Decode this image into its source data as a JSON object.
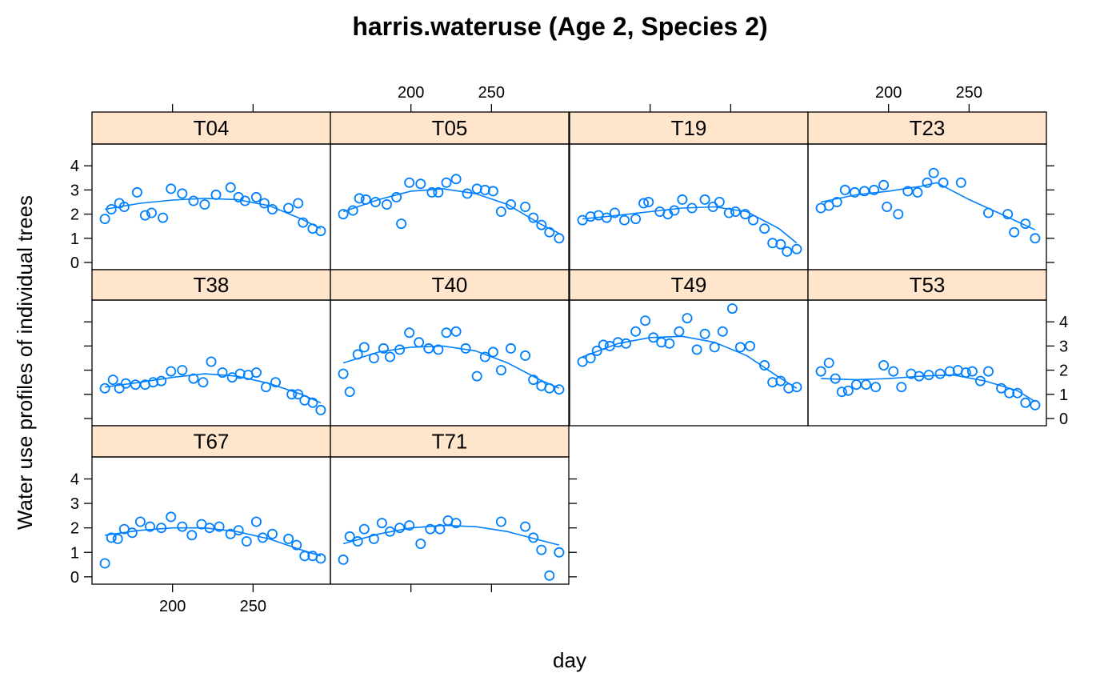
{
  "chart_data": {
    "type": "scatter",
    "title": "harris.wateruse (Age 2, Species 2)",
    "xlabel": "day",
    "ylabel": "Water use profiles of individual trees",
    "xlim": [
      150,
      298
    ],
    "ylim": [
      -0.3,
      4.9
    ],
    "x_ticks": [
      200,
      250
    ],
    "y_ticks": [
      0,
      1,
      2,
      3,
      4
    ],
    "point_color": "#0080ff",
    "strip_color": "#ffe5cc",
    "layout": "4 columns x 3 rows (lattice)",
    "panels": [
      {
        "name": "T04",
        "x": [
          158,
          162,
          167,
          170,
          178,
          183,
          187,
          194,
          199,
          206,
          213,
          220,
          227,
          236,
          241,
          245,
          252,
          257,
          262,
          272,
          278,
          281,
          287,
          292
        ],
        "y": [
          1.8,
          2.2,
          2.45,
          2.3,
          2.9,
          1.95,
          2.05,
          1.85,
          3.05,
          2.85,
          2.55,
          2.4,
          2.8,
          3.1,
          2.7,
          2.55,
          2.7,
          2.45,
          2.2,
          2.25,
          2.45,
          1.65,
          1.4,
          1.3
        ],
        "fit_x": [
          158,
          180,
          200,
          220,
          240,
          260,
          280,
          292
        ],
        "fit_y": [
          2.2,
          2.45,
          2.58,
          2.65,
          2.6,
          2.35,
          1.8,
          1.4
        ]
      },
      {
        "name": "T05",
        "x": [
          158,
          164,
          168,
          172,
          178,
          185,
          191,
          194,
          199,
          206,
          213,
          217,
          222,
          228,
          235,
          241,
          246,
          251,
          256,
          262,
          271,
          276,
          281,
          286,
          292
        ],
        "y": [
          2.0,
          2.15,
          2.65,
          2.6,
          2.5,
          2.4,
          2.7,
          1.6,
          3.3,
          3.25,
          2.9,
          2.9,
          3.3,
          3.45,
          2.85,
          3.05,
          3.0,
          2.95,
          2.1,
          2.4,
          2.3,
          1.85,
          1.55,
          1.25,
          1.0
        ],
        "fit_x": [
          158,
          180,
          200,
          220,
          240,
          260,
          280,
          292
        ],
        "fit_y": [
          2.1,
          2.6,
          2.95,
          3.05,
          2.85,
          2.4,
          1.6,
          1.2
        ]
      },
      {
        "name": "T19",
        "x": [
          158,
          163,
          168,
          173,
          178,
          184,
          191,
          196,
          199,
          206,
          211,
          215,
          220,
          226,
          234,
          239,
          243,
          249,
          253,
          259,
          264,
          271,
          276,
          281,
          285,
          291
        ],
        "y": [
          1.75,
          1.9,
          1.95,
          1.85,
          2.05,
          1.75,
          1.8,
          2.45,
          2.5,
          2.1,
          2.0,
          2.15,
          2.6,
          2.25,
          2.6,
          2.3,
          2.5,
          2.05,
          2.1,
          2.0,
          1.75,
          1.4,
          0.8,
          0.75,
          0.45,
          0.55
        ],
        "fit_x": [
          158,
          180,
          200,
          220,
          240,
          260,
          280,
          291
        ],
        "fit_y": [
          1.8,
          1.95,
          2.1,
          2.25,
          2.3,
          2.1,
          1.4,
          0.8
        ]
      },
      {
        "name": "T23",
        "x": [
          158,
          163,
          168,
          173,
          179,
          185,
          191,
          197,
          199,
          206,
          212,
          218,
          224,
          228,
          234,
          245,
          262,
          274,
          278,
          285,
          291
        ],
        "y": [
          2.25,
          2.35,
          2.5,
          3.0,
          2.9,
          2.95,
          3.0,
          3.2,
          2.3,
          2.0,
          2.95,
          2.9,
          3.3,
          3.7,
          3.3,
          3.3,
          2.05,
          2.0,
          1.25,
          1.6,
          1.0
        ],
        "fit_x": [
          158,
          180,
          200,
          220,
          230,
          250,
          270,
          291
        ],
        "fit_y": [
          2.5,
          2.8,
          2.95,
          3.15,
          3.3,
          2.6,
          2.0,
          1.35
        ]
      },
      {
        "name": "T38",
        "x": [
          158,
          163,
          167,
          171,
          177,
          183,
          188,
          193,
          199,
          206,
          213,
          219,
          224,
          231,
          237,
          242,
          247,
          252,
          258,
          264,
          274,
          278,
          282,
          287,
          292
        ],
        "y": [
          1.25,
          1.6,
          1.25,
          1.45,
          1.4,
          1.4,
          1.5,
          1.55,
          1.95,
          2.0,
          1.65,
          1.5,
          2.35,
          1.9,
          1.7,
          1.85,
          1.8,
          1.9,
          1.3,
          1.5,
          1.0,
          1.0,
          0.75,
          0.65,
          0.35
        ],
        "fit_x": [
          158,
          180,
          200,
          220,
          240,
          260,
          280,
          292
        ],
        "fit_y": [
          1.3,
          1.5,
          1.7,
          1.85,
          1.75,
          1.45,
          1.0,
          0.65
        ]
      },
      {
        "name": "T40",
        "x": [
          158,
          162,
          167,
          171,
          177,
          183,
          187,
          193,
          199,
          205,
          211,
          217,
          222,
          228,
          234,
          241,
          246,
          251,
          256,
          262,
          271,
          276,
          281,
          286,
          292
        ],
        "y": [
          1.85,
          1.1,
          2.65,
          2.95,
          2.5,
          2.9,
          2.55,
          2.85,
          3.55,
          3.15,
          2.9,
          2.85,
          3.55,
          3.6,
          2.9,
          1.75,
          2.55,
          2.75,
          2.0,
          2.9,
          2.6,
          1.6,
          1.35,
          1.25,
          1.2
        ],
        "fit_x": [
          158,
          180,
          200,
          220,
          240,
          260,
          280,
          292
        ],
        "fit_y": [
          2.3,
          2.75,
          2.95,
          3.0,
          2.8,
          2.3,
          1.6,
          1.25
        ]
      },
      {
        "name": "T49",
        "x": [
          158,
          163,
          167,
          171,
          175,
          180,
          185,
          191,
          197,
          202,
          207,
          212,
          218,
          223,
          229,
          234,
          240,
          245,
          251,
          256,
          262,
          271,
          276,
          281,
          286,
          291
        ],
        "y": [
          2.35,
          2.5,
          2.8,
          3.05,
          3.0,
          3.15,
          3.1,
          3.6,
          4.05,
          3.35,
          3.15,
          3.1,
          3.6,
          4.15,
          2.85,
          3.5,
          2.95,
          3.6,
          4.55,
          2.95,
          3.0,
          2.2,
          1.5,
          1.55,
          1.25,
          1.3
        ],
        "fit_x": [
          158,
          180,
          200,
          220,
          240,
          260,
          280,
          291
        ],
        "fit_y": [
          2.55,
          3.1,
          3.35,
          3.4,
          3.15,
          2.6,
          1.7,
          1.25
        ]
      },
      {
        "name": "T53",
        "x": [
          158,
          163,
          167,
          171,
          175,
          180,
          186,
          192,
          197,
          203,
          208,
          214,
          219,
          225,
          232,
          238,
          243,
          248,
          252,
          257,
          262,
          270,
          275,
          280,
          285,
          291
        ],
        "y": [
          1.95,
          2.3,
          1.65,
          1.1,
          1.15,
          1.4,
          1.4,
          1.3,
          2.2,
          1.95,
          1.3,
          1.85,
          1.75,
          1.8,
          1.85,
          1.95,
          2.0,
          1.9,
          1.95,
          1.55,
          1.95,
          1.25,
          1.05,
          1.05,
          0.65,
          0.55
        ],
        "fit_x": [
          158,
          180,
          200,
          220,
          240,
          260,
          280,
          291
        ],
        "fit_y": [
          1.65,
          1.6,
          1.65,
          1.75,
          1.8,
          1.55,
          1.15,
          0.7
        ]
      },
      {
        "name": "T67",
        "x": [
          158,
          162,
          166,
          170,
          175,
          180,
          186,
          193,
          199,
          206,
          212,
          218,
          223,
          229,
          236,
          241,
          246,
          252,
          256,
          262,
          272,
          277,
          282,
          287,
          292
        ],
        "y": [
          0.55,
          1.6,
          1.55,
          1.95,
          1.8,
          2.25,
          2.05,
          2.0,
          2.45,
          2.05,
          1.7,
          2.15,
          2.0,
          2.05,
          1.75,
          1.9,
          1.45,
          2.25,
          1.6,
          1.75,
          1.55,
          1.3,
          0.85,
          0.85,
          0.75
        ],
        "fit_x": [
          158,
          180,
          200,
          220,
          240,
          260,
          280,
          292
        ],
        "fit_y": [
          1.7,
          1.9,
          2.0,
          2.0,
          1.85,
          1.55,
          1.1,
          0.85
        ]
      },
      {
        "name": "T71",
        "x": [
          158,
          162,
          167,
          171,
          177,
          182,
          187,
          193,
          199,
          206,
          212,
          218,
          223,
          228,
          256,
          271,
          276,
          281,
          286,
          292
        ],
        "y": [
          0.7,
          1.65,
          1.45,
          1.95,
          1.55,
          2.2,
          1.85,
          2.0,
          2.1,
          1.35,
          1.95,
          1.95,
          2.3,
          2.2,
          2.25,
          2.05,
          1.6,
          1.1,
          0.05,
          1.0
        ],
        "fit_x": [
          158,
          180,
          200,
          220,
          240,
          260,
          280,
          292
        ],
        "fit_y": [
          1.35,
          1.75,
          2.0,
          2.1,
          2.05,
          1.85,
          1.5,
          1.3
        ]
      }
    ]
  }
}
